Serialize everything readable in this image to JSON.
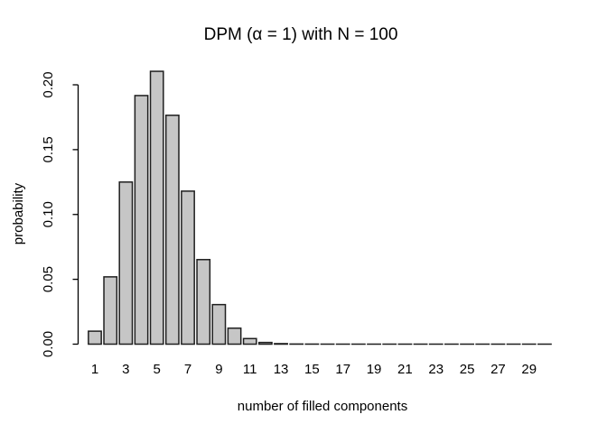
{
  "figure": {
    "background": "#ffffff"
  },
  "chart_data": {
    "type": "bar",
    "title": "DPM (α = 1) with N = 100",
    "xlabel": "number of filled components",
    "ylabel": "probability",
    "categories": [
      1,
      2,
      3,
      4,
      5,
      6,
      7,
      8,
      9,
      10,
      11,
      12,
      13,
      14,
      15,
      16,
      17,
      18,
      19,
      20,
      21,
      22,
      23,
      24,
      25,
      26,
      27,
      28,
      29,
      30
    ],
    "values": [
      0.01,
      0.0519,
      0.125,
      0.1917,
      0.2104,
      0.1765,
      0.118,
      0.0652,
      0.0305,
      0.0123,
      0.0043,
      0.0013,
      0.0004,
      0.0001,
      5e-05,
      2e-05,
      1e-05,
      1e-05,
      1e-05,
      1e-05,
      1e-05,
      1e-05,
      1e-05,
      1e-05,
      1e-05,
      1e-05,
      1e-05,
      1e-05,
      1e-05,
      1e-05
    ],
    "x_tick_labels": [
      "1",
      "3",
      "5",
      "7",
      "9",
      "11",
      "13",
      "15",
      "17",
      "19",
      "21",
      "23",
      "25",
      "27",
      "29"
    ],
    "x_tick_every": 2,
    "y_ticks": [
      0.0,
      0.05,
      0.1,
      0.15,
      0.2
    ],
    "y_tick_labels": [
      "0.00",
      "0.05",
      "0.10",
      "0.15",
      "0.20"
    ],
    "ylim": [
      0,
      0.2104
    ],
    "y_axis_max_tick": 0.2,
    "grid": false,
    "legend": null,
    "bar_fill": "#c6c6c6",
    "bar_border": "#1f1f1f",
    "axis_color": "#000000",
    "text_color": "#000000"
  }
}
